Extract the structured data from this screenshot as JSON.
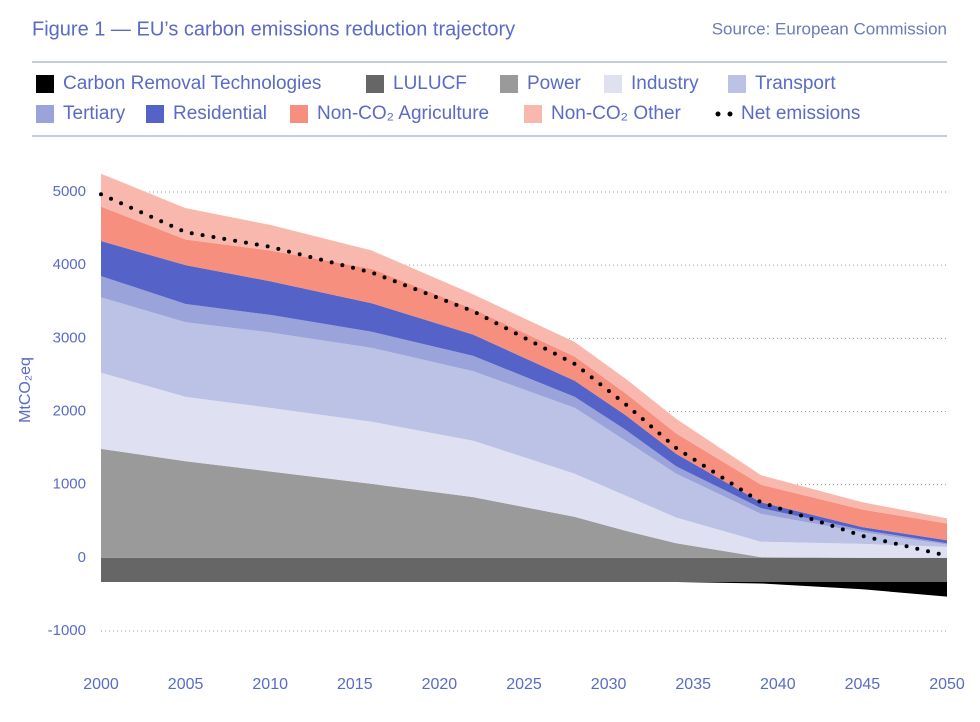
{
  "chart_data": {
    "type": "area",
    "stacked": true,
    "title": "Figure 1 — EU’s carbon emissions reduction trajectory",
    "source": "Source: European Commission",
    "y_label": "MtCO₂eq",
    "x": [
      2000,
      2005,
      2010,
      2016,
      2022,
      2028,
      2031,
      2034,
      2039,
      2045,
      2050
    ],
    "series": [
      {
        "name": "Carbon Removal Technologies",
        "color": "#000000",
        "values": [
          0,
          0,
          0,
          0,
          0,
          0,
          0,
          0,
          -20,
          -100,
          -200
        ]
      },
      {
        "name": "LULUCF",
        "color": "#666666",
        "values": [
          -330,
          -330,
          -330,
          -330,
          -330,
          -330,
          -330,
          -330,
          -330,
          -330,
          -330
        ]
      },
      {
        "name": "Power",
        "color": "#9a9a9a",
        "values": [
          1490,
          1320,
          1180,
          1010,
          830,
          560,
          370,
          200,
          10,
          0,
          0
        ]
      },
      {
        "name": "Industry",
        "color": "#dfe1f3",
        "values": [
          1040,
          880,
          870,
          850,
          770,
          590,
          480,
          350,
          210,
          190,
          150
        ]
      },
      {
        "name": "Transport",
        "color": "#bcc2e6",
        "values": [
          1030,
          1020,
          1030,
          1010,
          950,
          900,
          750,
          600,
          380,
          160,
          30
        ]
      },
      {
        "name": "Tertiary",
        "color": "#9aa4db",
        "values": [
          290,
          250,
          240,
          220,
          210,
          150,
          150,
          100,
          80,
          30,
          20
        ]
      },
      {
        "name": "Residential",
        "color": "#5563c8",
        "values": [
          480,
          530,
          460,
          390,
          290,
          220,
          200,
          170,
          80,
          40,
          40
        ]
      },
      {
        "name": "Non-CO₂ Agriculture",
        "color": "#f78f7e",
        "values": [
          470,
          350,
          420,
          470,
          350,
          330,
          300,
          280,
          240,
          240,
          230
        ]
      },
      {
        "name": "Non-CO₂ Other",
        "color": "#f9b8ae",
        "values": [
          450,
          430,
          350,
          250,
          200,
          200,
          200,
          200,
          130,
          100,
          70
        ]
      },
      {
        "name": "Net emissions",
        "color": "#000000",
        "kind": "dotted-line",
        "values": [
          4970,
          4450,
          4250,
          3900,
          3370,
          2650,
          2100,
          1500,
          760,
          300,
          30
        ]
      }
    ],
    "xlim": [
      2000,
      2050
    ],
    "xticks": [
      2000,
      2005,
      2010,
      2015,
      2020,
      2025,
      2030,
      2035,
      2040,
      2045,
      2050
    ],
    "ylim": [
      -1000,
      5000
    ],
    "yticks": [
      -1000,
      0,
      1000,
      2000,
      3000,
      4000,
      5000
    ],
    "grid": true
  }
}
